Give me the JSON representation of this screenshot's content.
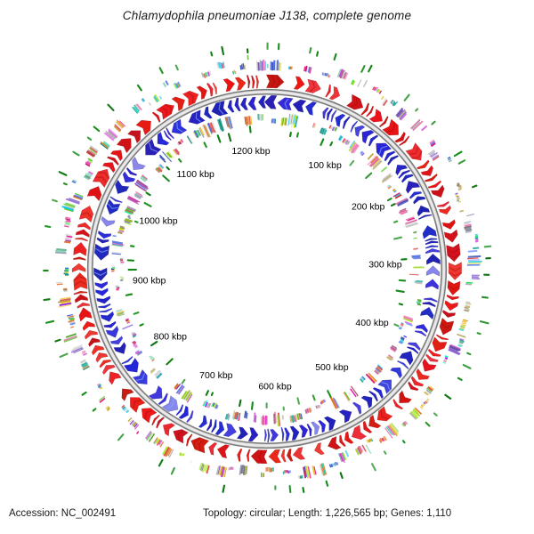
{
  "title": "Chlamydophila pneumoniae J138, complete genome",
  "footer": {
    "accession": "Accession: NC_002491",
    "summary": "Topology: circular; Length: 1,226,565 bp; Genes: 1,110"
  },
  "chart_data": {
    "type": "circular-genome-map",
    "organism": "Chlamydophila pneumoniae J138",
    "accession": "NC_002491",
    "topology": "circular",
    "length_bp": 1226565,
    "gene_count": 1110,
    "tick_labels": [
      "100 kbp",
      "200 kbp",
      "300 kbp",
      "400 kbp",
      "500 kbp",
      "600 kbp",
      "700 kbp",
      "800 kbp",
      "900 kbp",
      "1000 kbp",
      "1100 kbp",
      "1200 kbp"
    ],
    "tick_positions_kbp": [
      100,
      200,
      300,
      400,
      500,
      600,
      700,
      800,
      900,
      1000,
      1100,
      1200
    ],
    "rings": [
      {
        "name": "outer-ticks",
        "type": "ticks",
        "color": "#128a14"
      },
      {
        "name": "outer-feature-bars",
        "type": "barcode"
      },
      {
        "name": "forward-strand-genes",
        "type": "arrows",
        "direction": "clockwise",
        "color": "#e21414"
      },
      {
        "name": "backbone",
        "type": "backbone",
        "color": "#7a7a7a"
      },
      {
        "name": "reverse-strand-genes",
        "type": "arrows",
        "direction": "counterclockwise",
        "color": "#2524cd"
      },
      {
        "name": "inner-feature-bars",
        "type": "barcode"
      },
      {
        "name": "inner-ticks",
        "type": "ticks",
        "color": "#128a14"
      },
      {
        "name": "position-labels",
        "type": "labels"
      }
    ],
    "colors": {
      "forward_strand": "#e21414",
      "reverse_strand": "#2524cd",
      "backbone_edge": "#7a7a7a",
      "backbone_fill": "#d6d6d6",
      "tick_green": "#128a14",
      "label_text": "#000000"
    },
    "bar_palette": [
      "#e8762e",
      "#3fd0e8",
      "#ee7fb2",
      "#e8288f",
      "#5ec832",
      "#c3b272",
      "#8a65d2",
      "#4a6ae0",
      "#9aa0b5",
      "#e05555",
      "#b2e83a",
      "#2fb3a3",
      "#f0c840",
      "#7090ff",
      "#d96ad9",
      "#88d8b8"
    ]
  }
}
